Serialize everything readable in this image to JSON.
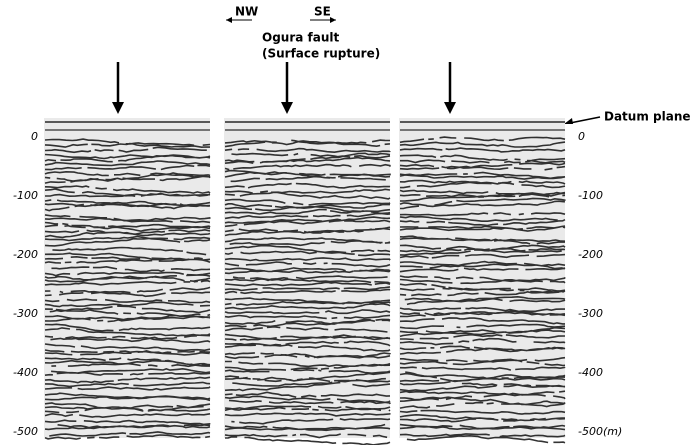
{
  "header": {
    "direction_left": "NW",
    "direction_right": "SE",
    "fault_name": "Ogura fault",
    "fault_note": "(Surface rupture)",
    "datum_label": "Datum plane"
  },
  "left_axis": {
    "ticks": [
      "0",
      "-100",
      "-200",
      "-300",
      "-400",
      "-500"
    ]
  },
  "right_axis": {
    "ticks": [
      "0",
      "-100",
      "-200",
      "-300",
      "-400",
      "-500(m)"
    ]
  }
}
